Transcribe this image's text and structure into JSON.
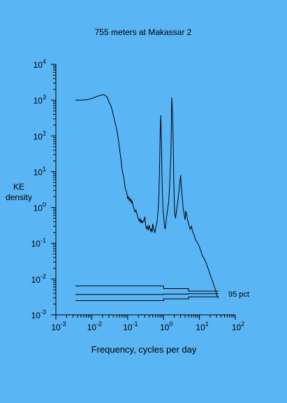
{
  "chart_data": {
    "type": "line",
    "title": "755 meters at Makassar 2",
    "xlabel": "Frequency, cycles per day",
    "ylabel_lines": [
      "KE",
      "density"
    ],
    "xscale": "log",
    "yscale": "log",
    "xlim": [
      0.001,
      100
    ],
    "ylim": [
      0.001,
      10000
    ],
    "x_ticks": [
      {
        "base": "10",
        "exp": "-3"
      },
      {
        "base": "10",
        "exp": "-2"
      },
      {
        "base": "10",
        "exp": "-1"
      },
      {
        "base": "10",
        "exp": "0"
      },
      {
        "base": "10",
        "exp": "1"
      },
      {
        "base": "10",
        "exp": "2"
      }
    ],
    "y_ticks": [
      {
        "base": "10",
        "exp": "4"
      },
      {
        "base": "10",
        "exp": "3"
      },
      {
        "base": "10",
        "exp": "2"
      },
      {
        "base": "10",
        "exp": "1"
      },
      {
        "base": "10",
        "exp": "0"
      },
      {
        "base": "10",
        "exp": "-1"
      },
      {
        "base": "10",
        "exp": "-2"
      },
      {
        "base": "10",
        "exp": "-3"
      }
    ],
    "series": [
      {
        "x": [
          0.0035,
          0.0055,
          0.008,
          0.011,
          0.015,
          0.018,
          0.021,
          0.024,
          0.027,
          0.03,
          0.035,
          0.04,
          0.046,
          0.052,
          0.058,
          0.064,
          0.07,
          0.075,
          0.08,
          0.085,
          0.09,
          0.095,
          0.1,
          0.105,
          0.11,
          0.115,
          0.12,
          0.125,
          0.13,
          0.135,
          0.14,
          0.15,
          0.16,
          0.17,
          0.18,
          0.19,
          0.2,
          0.21,
          0.22,
          0.23,
          0.24,
          0.25,
          0.26,
          0.28,
          0.3,
          0.32,
          0.34,
          0.36,
          0.38,
          0.4,
          0.42,
          0.44,
          0.46,
          0.48,
          0.5,
          0.52,
          0.55,
          0.58,
          0.62,
          0.66,
          0.7,
          0.74,
          0.78,
          0.81,
          0.84,
          0.86,
          0.88,
          0.9,
          0.93,
          0.96,
          1.0,
          1.05,
          1.1,
          1.15,
          1.2,
          1.3,
          1.4,
          1.5,
          1.6,
          1.7,
          1.8,
          1.85,
          1.9,
          1.93,
          1.97,
          2.0,
          2.05,
          2.15,
          2.3,
          2.5,
          2.7,
          2.9,
          3.0,
          3.1,
          3.3,
          3.5,
          3.8,
          4.0,
          4.2,
          4.6,
          5.0,
          5.5,
          6.0,
          6.5,
          7.0,
          7.5,
          8.0,
          9.0,
          10.0,
          11.0,
          12.0,
          13.0,
          14.0,
          15.0,
          16.0,
          18.0,
          20.0,
          22.0,
          24.0,
          26.0,
          28.0,
          30.0,
          32.0,
          34.0
        ],
        "y": [
          1000,
          1000,
          1050,
          1150,
          1300,
          1380,
          1420,
          1350,
          1200,
          900,
          650,
          380,
          210,
          120,
          55,
          25,
          12,
          8,
          6,
          3.5,
          3.0,
          2.5,
          1.8,
          2.0,
          1.6,
          1.8,
          1.5,
          1.7,
          1.3,
          1.5,
          1.2,
          0.9,
          0.75,
          0.85,
          0.7,
          0.55,
          0.48,
          0.42,
          0.5,
          0.38,
          0.45,
          0.36,
          0.42,
          0.4,
          0.55,
          0.3,
          0.25,
          0.3,
          0.23,
          0.32,
          0.26,
          0.22,
          0.25,
          0.2,
          0.35,
          0.28,
          0.22,
          0.2,
          0.3,
          0.4,
          0.7,
          2.0,
          20,
          150,
          380,
          120,
          60,
          10,
          2.5,
          1.0,
          0.6,
          0.35,
          0.25,
          0.3,
          0.5,
          0.9,
          1.5,
          6,
          30,
          1200,
          300,
          80,
          20,
          5,
          2.5,
          1.2,
          0.7,
          0.5,
          0.8,
          1.5,
          3.0,
          6.0,
          8.0,
          4.0,
          2.0,
          1.0,
          0.6,
          0.45,
          0.8,
          0.5,
          0.35,
          0.25,
          0.3,
          0.2,
          0.18,
          0.14,
          0.12,
          0.1,
          0.08,
          0.06,
          0.045,
          0.04,
          0.035,
          0.03,
          0.025,
          0.018,
          0.013,
          0.01,
          0.008,
          0.006,
          0.005,
          0.0038,
          0.0032,
          0.003
        ]
      }
    ],
    "confidence_band": {
      "label": "95 pct",
      "x": [
        0.0035,
        0.5,
        1.0,
        2.0,
        5.0,
        10.0,
        34.0
      ],
      "lines": [
        [
          0.0064,
          0.0064,
          0.0054,
          0.0054,
          0.0046,
          0.0046,
          0.0046
        ],
        [
          0.0037,
          0.0037,
          0.0038,
          0.0038,
          0.0039,
          0.0039,
          0.0039
        ],
        [
          0.0025,
          0.0025,
          0.0028,
          0.0028,
          0.0032,
          0.0032,
          0.0032
        ]
      ]
    },
    "grid": false,
    "legend": "none"
  }
}
